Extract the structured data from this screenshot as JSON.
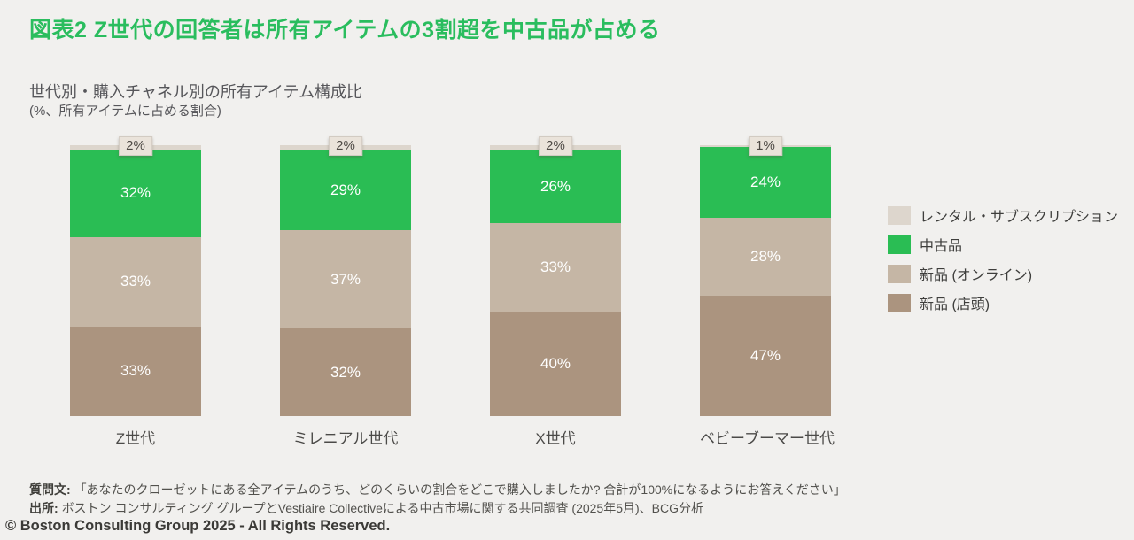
{
  "header": {
    "title": "図表2   Z世代の回答者は所有アイテムの3割超を中古品が占める"
  },
  "subtitle": {
    "line1": "世代別・購入チャネル別の所有アイテム構成比",
    "line2": "(%、所有アイテムに占める割合)"
  },
  "chart_data": {
    "type": "bar",
    "stacked": true,
    "orientation": "vertical",
    "title": "世代別・購入チャネル別の所有アイテム構成比",
    "unit_note": "(%、所有アイテムに占める割合)",
    "value_suffix": "%",
    "ylim": [
      0,
      100
    ],
    "grid": false,
    "legend_position": "right",
    "categories": [
      "Z世代",
      "ミレニアル世代",
      "X世代",
      "ベビーブーマー世代"
    ],
    "series": [
      {
        "key": "rental",
        "name": "レンタル・サブスクリプション",
        "color": "#ddd6cd",
        "label_style": "badge-above",
        "values": [
          2,
          2,
          2,
          1
        ]
      },
      {
        "key": "secondhand",
        "name": "中古品",
        "color": "#2abd54",
        "label_style": "inside",
        "values": [
          32,
          29,
          26,
          24
        ]
      },
      {
        "key": "new-online",
        "name": "新品 (オンライン)",
        "color": "#c5b6a5",
        "label_style": "inside",
        "values": [
          33,
          37,
          33,
          28
        ]
      },
      {
        "key": "new-instore",
        "name": "新品 (店頭)",
        "color": "#ab947f",
        "label_style": "inside",
        "values": [
          33,
          32,
          40,
          47
        ]
      }
    ]
  },
  "colors": {
    "accent_green": "#2abd5e",
    "background": "#f1f0ee",
    "badge_background": "#eae3da"
  },
  "footer": {
    "question_label": "質問文:",
    "question_text": "「あなたのクローゼットにある全アイテムのうち、どのくらいの割合をどこで購入しましたか? 合計が100%になるようにお答えください」",
    "source_label": "出所:",
    "source_text": "ボストン コンサルティング グループとVestiaire Collectiveによる中古市場に関する共同調査 (2025年5月)、BCG分析",
    "copyright": "© Boston Consulting Group 2025 - All Rights Reserved."
  }
}
